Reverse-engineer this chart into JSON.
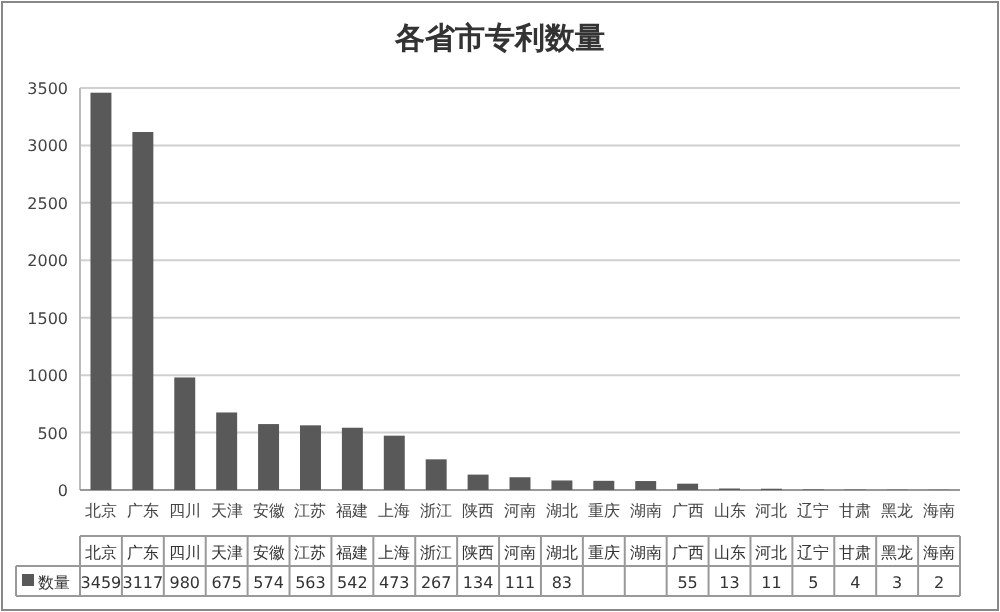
{
  "chart_data": {
    "type": "bar",
    "title": "各省市专利数量",
    "categories": [
      "北京",
      "广东",
      "四川",
      "天津",
      "安徽",
      "江苏",
      "福建",
      "上海",
      "浙江",
      "陕西",
      "河南",
      "湖北",
      "重庆",
      "湖南",
      "广西",
      "山东",
      "河北",
      "辽宁",
      "甘肃",
      "黑龙",
      "海南"
    ],
    "series": [
      {
        "name": "数量",
        "color": "#595959",
        "values": [
          3459,
          3117,
          980,
          675,
          574,
          563,
          542,
          473,
          267,
          134,
          111,
          83,
          80,
          78,
          55,
          13,
          11,
          5,
          4,
          3,
          2
        ],
        "value_labels": [
          "3459",
          "3117",
          "980",
          "675",
          "574",
          "563",
          "542",
          "473",
          "267",
          "134",
          "111",
          "83",
          null,
          null,
          "55",
          "13",
          "11",
          "5",
          "4",
          "3",
          "2"
        ]
      }
    ],
    "ylim": [
      0,
      3500
    ],
    "yticks": [
      0,
      500,
      1000,
      1500,
      2000,
      2500,
      3000,
      3500
    ],
    "grid": "y",
    "legend": "bottom"
  }
}
